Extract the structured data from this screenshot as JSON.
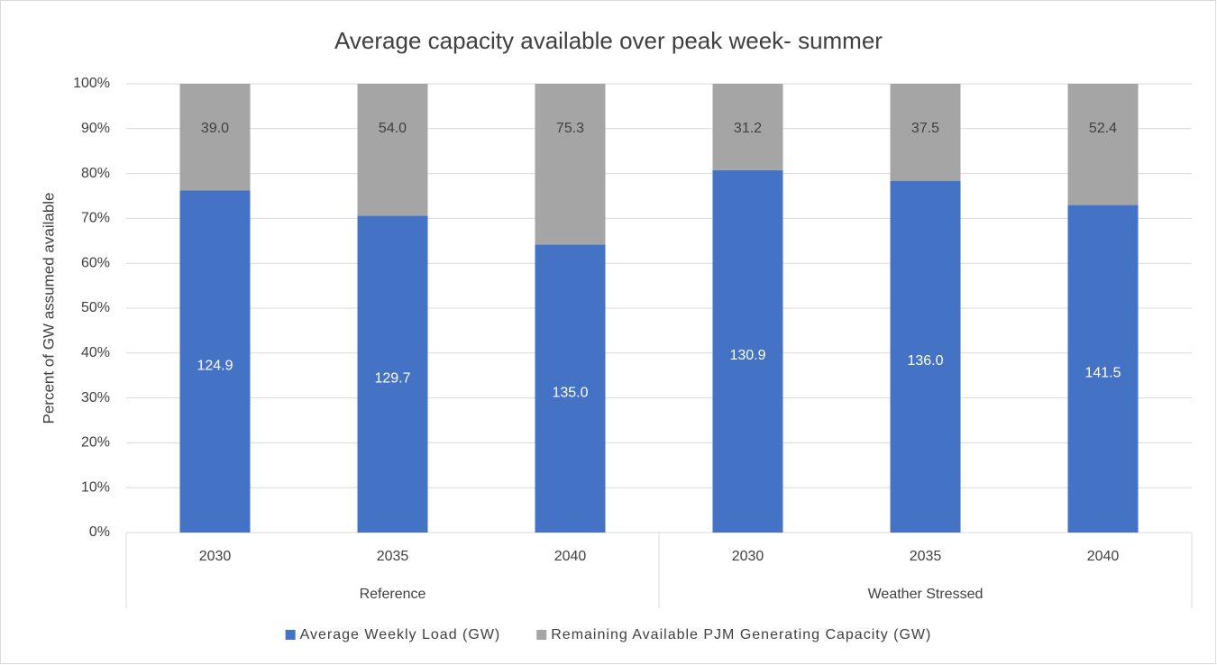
{
  "chart_data": {
    "type": "bar",
    "stacking": "percent",
    "title": "Average capacity available over peak week- summer",
    "y_label": "Percent of GW assumed available",
    "groups": [
      {
        "name": "Reference",
        "categories": [
          "2030",
          "2035",
          "2040"
        ]
      },
      {
        "name": "Weather Stressed",
        "categories": [
          "2030",
          "2035",
          "2040"
        ]
      }
    ],
    "series": [
      {
        "name": "Average Weekly Load (GW)",
        "color": "#4472c4",
        "values": [
          124.9,
          129.7,
          135.0,
          130.9,
          136.0,
          141.5
        ],
        "value_labels": [
          "124.9",
          "129.7",
          "135.0",
          "130.9",
          "136.0",
          "141.5"
        ]
      },
      {
        "name": "Remaining Available PJM Generating Capacity (GW)",
        "color": "#a5a5a5",
        "values": [
          39.0,
          54.0,
          75.3,
          31.2,
          37.5,
          52.4
        ],
        "value_labels": [
          "39.0",
          "54.0",
          "75.3",
          "31.2",
          "37.5",
          "52.4"
        ]
      }
    ],
    "ylim": [
      0,
      100
    ],
    "yticks": [
      {
        "value": 0,
        "label": "0%"
      },
      {
        "value": 10,
        "label": "10%"
      },
      {
        "value": 20,
        "label": "20%"
      },
      {
        "value": 30,
        "label": "30%"
      },
      {
        "value": 40,
        "label": "40%"
      },
      {
        "value": 50,
        "label": "50%"
      },
      {
        "value": 60,
        "label": "60%"
      },
      {
        "value": 70,
        "label": "70%"
      },
      {
        "value": 80,
        "label": "80%"
      },
      {
        "value": 90,
        "label": "90%"
      },
      {
        "value": 100,
        "label": "100%"
      }
    ],
    "grid": true,
    "legend": "bottom"
  }
}
